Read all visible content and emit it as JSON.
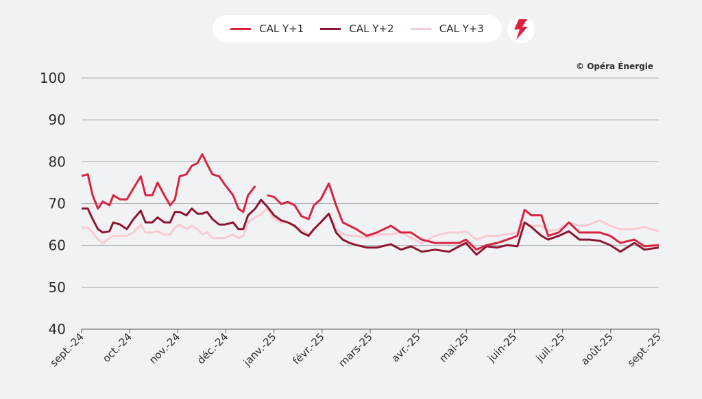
{
  "credit": "© Opéra Énergie",
  "icon": "lightning-bolt-icon",
  "chart_data": {
    "type": "line",
    "title": "",
    "xlabel": "",
    "ylabel": "",
    "ylim": [
      40,
      100
    ],
    "yticks": [
      40,
      50,
      60,
      70,
      80,
      90,
      100
    ],
    "xlim": [
      0,
      12
    ],
    "xtick_labels": [
      "sept.-24",
      "oct.-24",
      "nov.-24",
      "déc.-24",
      "janv.-25",
      "févr.-25",
      "mars-25",
      "avr.-25",
      "mai-25",
      "juin-25",
      "juil.-25",
      "août-25",
      "sept.-25"
    ],
    "x_unit": "months since Sept 2024",
    "grid": "horizontal",
    "legend_position": "top-center",
    "x": [
      0,
      0.13,
      0.23,
      0.34,
      0.44,
      0.58,
      0.66,
      0.8,
      0.94,
      1.08,
      1.23,
      1.33,
      1.47,
      1.58,
      1.72,
      1.84,
      1.94,
      2.04,
      2.18,
      2.29,
      2.41,
      2.51,
      2.61,
      2.72,
      2.86,
      2.98,
      3.15,
      3.26,
      3.36,
      3.46,
      3.61,
      3.73,
      3.86,
      4.0,
      4.15,
      4.29,
      4.43,
      4.57,
      4.72,
      4.83,
      4.97,
      5.14,
      5.29,
      5.43,
      5.57,
      5.71,
      5.93,
      6.14,
      6.43,
      6.64,
      6.85,
      7.07,
      7.35,
      7.64,
      7.85,
      7.99,
      8.21,
      8.42,
      8.64,
      8.85,
      9.06,
      9.21,
      9.35,
      9.56,
      9.7,
      9.92,
      10.13,
      10.35,
      10.56,
      10.77,
      10.99,
      11.2,
      11.49,
      11.7,
      12
    ],
    "series": [
      {
        "name": "CAL Y+1",
        "color": "#d92341",
        "values": [
          76.6,
          77,
          72,
          68.8,
          70.5,
          69.6,
          72,
          71,
          71,
          73.7,
          76.5,
          72,
          72,
          75,
          72,
          69.6,
          71,
          76.5,
          77,
          79,
          79.7,
          81.8,
          79.4,
          77,
          76.5,
          74.5,
          72,
          68.8,
          68,
          72,
          74.2,
          null,
          72,
          71.6,
          69.9,
          70.4,
          69.6,
          67,
          66.3,
          69.6,
          71,
          74.8,
          69.6,
          65.5,
          64.7,
          63.9,
          62.3,
          63.1,
          64.7,
          63.1,
          63.1,
          61.4,
          60.6,
          60.6,
          60.6,
          61.4,
          59,
          60.1,
          60.6,
          61.4,
          62.3,
          68.5,
          67.2,
          67.2,
          62.3,
          63.1,
          65.5,
          63.1,
          63.1,
          63.1,
          62.3,
          60.6,
          61.4,
          59.8,
          60.1
        ]
      },
      {
        "name": "CAL Y+2",
        "color": "#8c1631",
        "values": [
          68.8,
          68.8,
          66.3,
          63.9,
          63.1,
          63.4,
          65.5,
          65,
          63.9,
          66.3,
          68.3,
          65.5,
          65.5,
          66.7,
          65.5,
          65.5,
          68,
          68,
          67.2,
          68.8,
          67.6,
          67.6,
          68,
          66.3,
          65,
          65,
          65.5,
          63.9,
          63.9,
          67.2,
          68.8,
          70.9,
          69.3,
          67.2,
          66,
          65.5,
          64.7,
          63.1,
          62.3,
          63.9,
          65.5,
          67.6,
          63.1,
          61.4,
          60.6,
          60.1,
          59.5,
          59.5,
          60.3,
          59,
          59.8,
          58.5,
          59,
          58.5,
          59.8,
          60.6,
          57.8,
          59.8,
          59.5,
          60.1,
          59.8,
          65.5,
          64.4,
          62.3,
          61.4,
          62.3,
          63.4,
          61.4,
          61.4,
          61.1,
          60.1,
          58.5,
          60.6,
          59,
          59.5
        ]
      },
      {
        "name": "CAL Y+3",
        "color": "#f8cbd3",
        "values": [
          64.2,
          64.2,
          63.1,
          61.4,
          60.5,
          61.8,
          62.3,
          62.3,
          62.3,
          63.1,
          65,
          63.1,
          63.1,
          63.4,
          62.6,
          62.6,
          64.2,
          65,
          63.9,
          64.7,
          63.9,
          62.7,
          63.1,
          61.8,
          61.8,
          61.8,
          62.6,
          61.8,
          62.3,
          65.5,
          66.7,
          67.5,
          68.8,
          66.3,
          65.5,
          65.5,
          64.4,
          63.9,
          62.7,
          63.9,
          65.5,
          67.6,
          63.9,
          62.7,
          62.3,
          62.3,
          61.8,
          62.6,
          62.7,
          63.1,
          61.8,
          60.6,
          62.3,
          63.1,
          63.1,
          63.4,
          61.4,
          62.3,
          62.3,
          62.7,
          63.1,
          65.5,
          64.7,
          64.7,
          63.4,
          63.9,
          65.5,
          64.7,
          65,
          66,
          64.7,
          63.9,
          63.9,
          64.4,
          63.4
        ]
      }
    ]
  }
}
